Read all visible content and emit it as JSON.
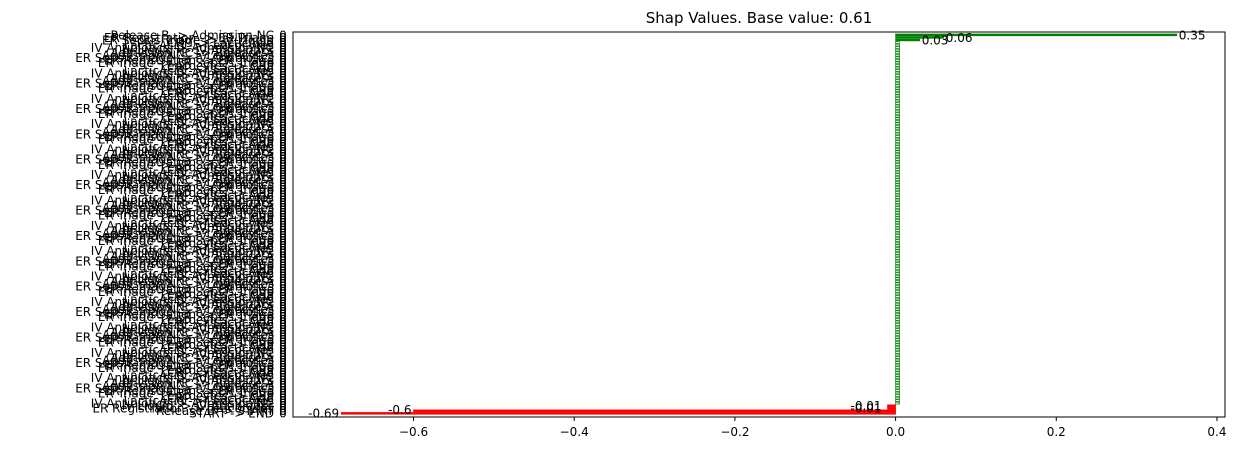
{
  "chart_data": {
    "type": "bar",
    "orientation": "horizontal",
    "title": "Shap Values. Base value: 0.61",
    "xlabel": "",
    "ylabel": "",
    "xlim": [
      -0.75,
      0.41
    ],
    "x_ticks": [
      -0.6,
      -0.4,
      -0.2,
      0.0,
      0.2,
      0.4
    ],
    "x_tick_labels": [
      "−0.6",
      "−0.4",
      "−0.2",
      "0.0",
      "0.2",
      "0.4"
    ],
    "grid": false,
    "legend": "none",
    "bar_count": 150,
    "colors": {
      "positive": "#008000",
      "negative": "#ff0000",
      "text": "#000000"
    },
    "categories_top": [
      "Release B -> Admission NC",
      "ER Registration -> ER Triage",
      "ER Sepsis Triage -> IV Liquid"
    ],
    "categories_sample": [
      "ER Registration -> ER Triage",
      "ER Triage -> ER Sepsis Triage",
      "Leucocytes -> CRP",
      "CRP -> LacticAcid",
      "LacticAcid -> Leucocytes",
      "IV Antibiotics -> Admission NC",
      "IV Liquid -> IV Antibiotics",
      "Admission NC -> Release A",
      "Admission NC -> Leucocytes",
      "ER Sepsis Triage -> IV Antibiotics"
    ],
    "categories_bottom": [
      "ER Registration -> Leucocytes",
      "Release B -> START",
      "START -> END"
    ],
    "highlighted": [
      {
        "label": "0.35",
        "value": 0.35
      },
      {
        "label": "0.06",
        "value": 0.06
      },
      {
        "label": "0.03",
        "value": 0.03
      },
      {
        "label": "-0.01",
        "value": -0.01
      },
      {
        "label": "-0.01",
        "value": -0.01
      },
      {
        "label": "-0.6",
        "value": -0.6
      },
      {
        "label": "-0.69",
        "value": -0.69
      }
    ],
    "row_value_label": "0"
  }
}
